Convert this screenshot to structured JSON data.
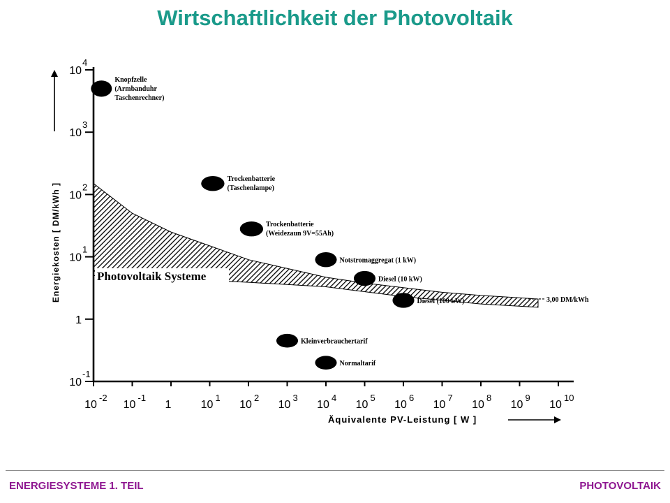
{
  "colors": {
    "title": "#1a9a8a",
    "footer_left": "#8e1690",
    "footer_right": "#8e1690",
    "ink": "#000000",
    "band_hatch": "#000000"
  },
  "page": {
    "title": "Wirtschaftlichkeit der Photovoltaik"
  },
  "footer": {
    "left": "ENERGIESYSTEME 1. TEIL",
    "right": "PHOTOVOLTAIK"
  },
  "chart_data": {
    "type": "scatter",
    "title": "",
    "xlabel": "Äquivalente PV-Leistung [ W ]",
    "ylabel": "Energiekosten [ DM/kWh ]",
    "x_scale": "log",
    "y_scale": "log",
    "xlim": [
      0.01,
      10000000000
    ],
    "ylim": [
      0.1,
      10000
    ],
    "x_ticks": [
      {
        "value": 0.01,
        "base": "10",
        "exp": "-2"
      },
      {
        "value": 0.1,
        "base": "10",
        "exp": "-1"
      },
      {
        "value": 1,
        "base": "1",
        "exp": ""
      },
      {
        "value": 10,
        "base": "10",
        "exp": "1"
      },
      {
        "value": 100,
        "base": "10",
        "exp": "2"
      },
      {
        "value": 1000,
        "base": "10",
        "exp": "3"
      },
      {
        "value": 10000,
        "base": "10",
        "exp": "4"
      },
      {
        "value": 100000,
        "base": "10",
        "exp": "5"
      },
      {
        "value": 1000000,
        "base": "10",
        "exp": "6"
      },
      {
        "value": 10000000,
        "base": "10",
        "exp": "7"
      },
      {
        "value": 100000000,
        "base": "10",
        "exp": "8"
      },
      {
        "value": 1000000000,
        "base": "10",
        "exp": "9"
      },
      {
        "value": 10000000000,
        "base": "10",
        "exp": "10"
      }
    ],
    "y_ticks": [
      {
        "value": 0.1,
        "base": "10",
        "exp": "-1"
      },
      {
        "value": 1,
        "base": "1",
        "exp": ""
      },
      {
        "value": 10,
        "base": "10",
        "exp": "1"
      },
      {
        "value": 100,
        "base": "10",
        "exp": "2"
      },
      {
        "value": 1000,
        "base": "10",
        "exp": "3"
      },
      {
        "value": 10000,
        "base": "10",
        "exp": "4"
      }
    ],
    "band": {
      "label": "Photovoltaik Systeme",
      "end_label": "3,00 DM/kWh",
      "upper": [
        [
          0.01,
          150
        ],
        [
          0.1,
          50
        ],
        [
          1,
          25
        ],
        [
          10,
          15
        ],
        [
          100,
          9
        ],
        [
          1000,
          6.5
        ],
        [
          10000,
          4.7
        ],
        [
          100000,
          3.8
        ],
        [
          1000000,
          3.2
        ],
        [
          10000000,
          2.7
        ],
        [
          100000000,
          2.4
        ],
        [
          1000000000,
          2.2
        ],
        [
          3000000000,
          2.1
        ]
      ],
      "lower": [
        [
          0.01,
          5
        ],
        [
          1,
          4.5
        ],
        [
          100,
          3.9
        ],
        [
          10000,
          3.3
        ],
        [
          1000000,
          2.3
        ],
        [
          100000000,
          1.75
        ],
        [
          3000000000,
          1.55
        ]
      ]
    },
    "points": [
      {
        "x": 0.016,
        "y": 5000,
        "rx": 0.27,
        "ry": 0.13,
        "label_lines": [
          "Knopfzelle",
          "(Armbanduhr",
          "Taschenrechner)"
        ]
      },
      {
        "x": 12,
        "y": 150,
        "rx": 0.3,
        "ry": 0.12,
        "label_lines": [
          "Trockenbatterie",
          "(Taschenlampe)"
        ]
      },
      {
        "x": 120,
        "y": 28,
        "rx": 0.3,
        "ry": 0.12,
        "label_lines": [
          "Trockenbatterie",
          "(Weidezaun 9V=55Ah)"
        ]
      },
      {
        "x": 10000,
        "y": 9,
        "rx": 0.28,
        "ry": 0.12,
        "label_lines": [
          "Notstromaggregat  (1 kW)"
        ]
      },
      {
        "x": 100000,
        "y": 4.5,
        "rx": 0.28,
        "ry": 0.12,
        "label_lines": [
          "Diesel (10 kW)"
        ]
      },
      {
        "x": 1000000,
        "y": 2,
        "rx": 0.28,
        "ry": 0.12,
        "label_lines": [
          "Diesel (100 kW)"
        ]
      },
      {
        "x": 1000,
        "y": 0.45,
        "rx": 0.28,
        "ry": 0.11,
        "label_lines": [
          "Kleinverbrauchertarif"
        ]
      },
      {
        "x": 10000,
        "y": 0.2,
        "rx": 0.28,
        "ry": 0.11,
        "label_lines": [
          "Normaltarif"
        ]
      }
    ]
  }
}
